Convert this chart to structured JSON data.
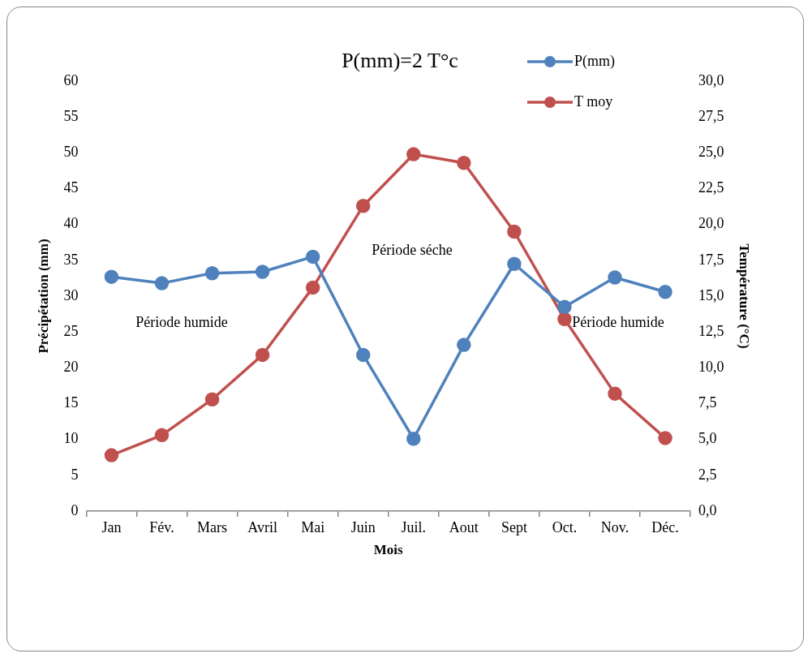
{
  "chart_data": {
    "type": "line",
    "title": "P(mm)=2 T°c",
    "xlabel": "Mois",
    "ylabel": "Précipétation (mm)",
    "y2label": "Température (°C)",
    "categories": [
      "Jan",
      "Fév.",
      "Mars",
      "Avril",
      "Mai",
      "Juin",
      "Juil.",
      "Aout",
      "Sept",
      "Oct.",
      "Nov.",
      "Déc."
    ],
    "series": [
      {
        "name": "P(mm)",
        "color": "#4f81bd",
        "values": [
          32.7,
          31.8,
          33.2,
          33.4,
          35.5,
          21.8,
          10.1,
          23.2,
          34.5,
          28.5,
          32.6,
          30.6
        ]
      },
      {
        "name": "T moy",
        "color": "#c0504d",
        "axis": "y2",
        "values": [
          3.9,
          5.3,
          7.8,
          10.9,
          15.6,
          21.3,
          24.9,
          24.3,
          19.5,
          13.4,
          8.2,
          5.1
        ]
      }
    ],
    "ylim": [
      0,
      60
    ],
    "yticks": [
      0,
      5,
      10,
      15,
      20,
      25,
      30,
      35,
      40,
      45,
      50,
      55,
      60
    ],
    "y2lim": [
      0,
      30
    ],
    "y2ticks": [
      {
        "value": 0,
        "label": "0,0"
      },
      {
        "value": 2.5,
        "label": "2,5"
      },
      {
        "value": 5,
        "label": "5,0"
      },
      {
        "value": 7.5,
        "label": "7,5"
      },
      {
        "value": 10,
        "label": "10,0"
      },
      {
        "value": 12.5,
        "label": "12,5"
      },
      {
        "value": 15,
        "label": "15,0"
      },
      {
        "value": 17.5,
        "label": "17,5"
      },
      {
        "value": 20,
        "label": "20,0"
      },
      {
        "value": 22.5,
        "label": "22,5"
      },
      {
        "value": 25,
        "label": "25,0"
      },
      {
        "value": 27.5,
        "label": "27,5"
      },
      {
        "value": 30,
        "label": "30,0"
      }
    ],
    "annotations": [
      "Période humide",
      "Période séche",
      "Période humide"
    ],
    "legend": "top right",
    "marker": "circle",
    "line_style": "solid"
  }
}
